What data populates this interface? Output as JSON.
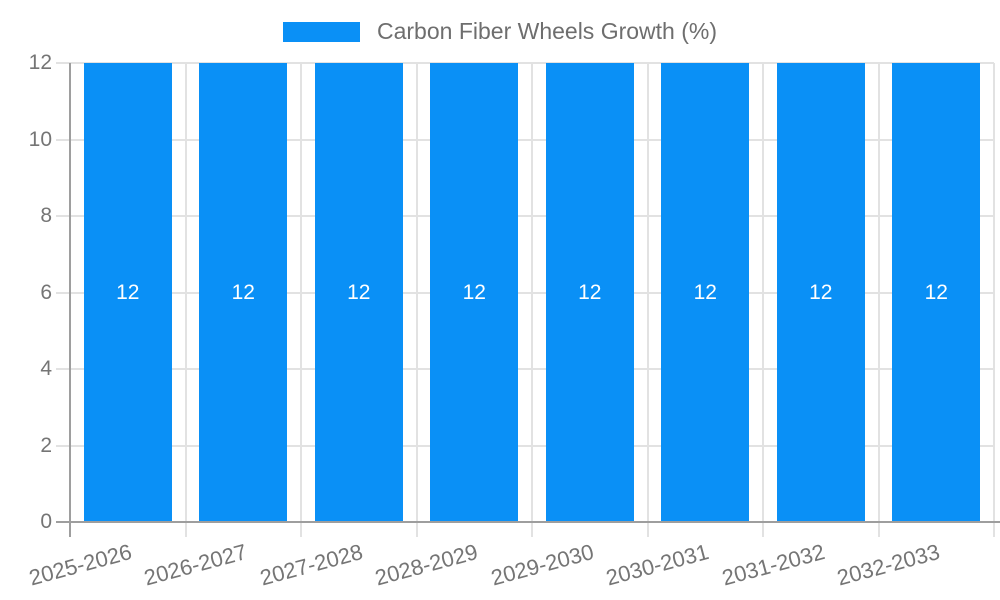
{
  "chart_data": {
    "type": "bar",
    "title": "Carbon Fiber Wheels Growth (%)",
    "legend_position": "top-center",
    "categories": [
      "2025-2026",
      "2026-2027",
      "2027-2028",
      "2028-2029",
      "2029-2030",
      "2030-2031",
      "2031-2032",
      "2032-2033"
    ],
    "series": [
      {
        "name": "Carbon Fiber Wheels Growth (%)",
        "values": [
          12,
          12,
          12,
          12,
          12,
          12,
          12,
          12
        ]
      }
    ],
    "values": [
      12,
      12,
      12,
      12,
      12,
      12,
      12,
      12
    ],
    "bar_value_labels": [
      "12",
      "12",
      "12",
      "12",
      "12",
      "12",
      "12",
      "12"
    ],
    "xlabel": "",
    "ylabel": "",
    "ylim": [
      0,
      12
    ],
    "yticks": [
      0,
      2,
      4,
      6,
      8,
      10,
      12
    ],
    "grid": true,
    "x_tick_rotation_deg": -15,
    "colors": {
      "bar": "#0a90f6",
      "grid": "#e2e2e2",
      "axis": "#9e9e9e",
      "tick_label": "#757575",
      "legend_text": "#6e6e6e",
      "bar_label": "#ffffff",
      "background": "#ffffff"
    }
  }
}
